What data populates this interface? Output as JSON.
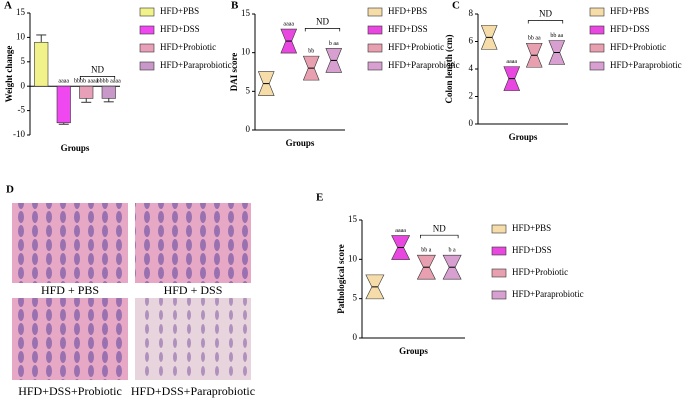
{
  "chart_data": [
    {
      "type": "bar",
      "panel": "A",
      "ylabel": "Weight change",
      "xlabel": "Groups",
      "categories": [
        "HFD+PBS",
        "HFD+DSS",
        "HFD+Probiotic",
        "HFD+Paraprobiotic"
      ],
      "values": [
        9,
        -7.5,
        -2.5,
        -2.5
      ],
      "errors": [
        1.5,
        0.3,
        0.8,
        0.7
      ],
      "colors": [
        "#f2f28a",
        "#f048f0",
        "#e8a0b8",
        "#c898c8"
      ],
      "annotations": [
        null,
        "aaaa",
        "bbbb aaaa",
        "bbbb aaaa"
      ],
      "nd": "ND",
      "ylim": [
        -10,
        15
      ],
      "yticks": [
        -10,
        -5,
        0,
        5,
        10,
        15
      ]
    },
    {
      "type": "violin",
      "panel": "B",
      "ylabel": "DAI score",
      "xlabel": "Groups",
      "categories": [
        "HFD+PBS",
        "HFD+DSS",
        "HFD+Probiotic",
        "HFD+Paraprobiotic"
      ],
      "values": [
        6,
        11.5,
        8,
        9
      ],
      "colors": [
        "#f5dca8",
        "#e848e0",
        "#e8a0b0",
        "#d8a0d0"
      ],
      "annotations": [
        null,
        "aaaa",
        "bb",
        "b aa"
      ],
      "nd": "ND",
      "ylim": [
        0,
        15
      ],
      "yticks": [
        0,
        5,
        10,
        15
      ]
    },
    {
      "type": "violin",
      "panel": "C",
      "ylabel": "Colon length (cm)",
      "xlabel": "Groups",
      "categories": [
        "HFD+PBS",
        "HFD+DSS",
        "HFD+Probiotic",
        "HFD+Paraprobiotic"
      ],
      "values": [
        6.3,
        3.3,
        5,
        5.2
      ],
      "colors": [
        "#f5dca8",
        "#e848e0",
        "#e8a0b0",
        "#d8a0d0"
      ],
      "annotations": [
        null,
        "aaaa",
        "bb aa",
        "bb aa"
      ],
      "nd": "ND",
      "ylim": [
        0,
        8
      ],
      "yticks": [
        0,
        2,
        4,
        6,
        8
      ]
    },
    {
      "type": "violin",
      "panel": "E",
      "ylabel": "Pathological score",
      "xlabel": "Groups",
      "categories": [
        "HFD+PBS",
        "HFD+DSS",
        "HFD+Probiotic",
        "HFD+Paraprobiotic"
      ],
      "values": [
        6.5,
        11.5,
        9,
        9
      ],
      "colors": [
        "#f5dca8",
        "#e848e0",
        "#e8a0b0",
        "#d8a0d0"
      ],
      "annotations": [
        null,
        "aaaa",
        "bb a",
        "b a"
      ],
      "nd": "ND",
      "ylim": [
        0,
        15
      ],
      "yticks": [
        0,
        5,
        10,
        15
      ]
    }
  ],
  "histology": {
    "panel": "D",
    "captions": [
      "HFD + PBS",
      "HFD + DSS",
      "HFD+DSS+Probiotic",
      "HFD+DSS+Paraprobiotic"
    ]
  }
}
